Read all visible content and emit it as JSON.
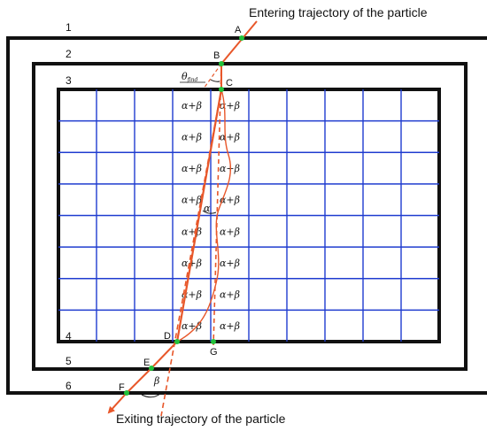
{
  "captions": {
    "entering": "Entering trajectory of the particle",
    "exiting": "Exiting trajectory of the particle"
  },
  "layer_numbers": [
    "1",
    "2",
    "3",
    "4",
    "5",
    "6"
  ],
  "points": [
    "A",
    "B",
    "C",
    "D",
    "E",
    "F",
    "G"
  ],
  "cell_label": "α+β",
  "angles": {
    "theta": "θ",
    "theta_sub": "find",
    "alpha": "α",
    "beta": "β"
  },
  "colors": {
    "trajectory": "#e8572a",
    "grid": "#1f3ccf",
    "frame": "#111111",
    "point": "#22c23a"
  },
  "grid": {
    "rows": 8,
    "cols": 10
  }
}
